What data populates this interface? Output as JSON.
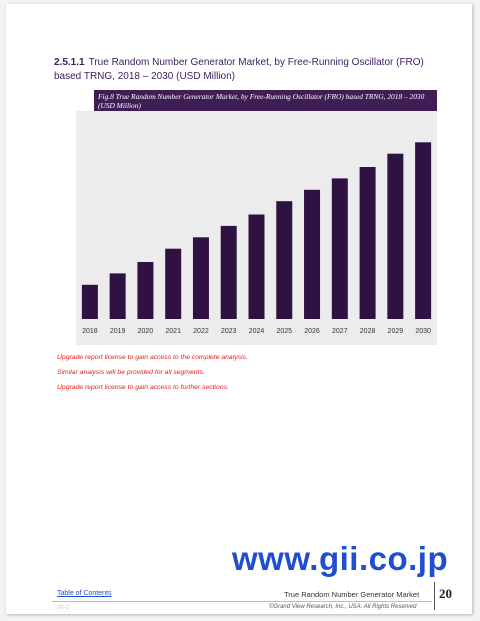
{
  "section": {
    "number": "2.5.1.1",
    "title": "True Random Number Generator Market, by Free-Running Oscillator (FRO) based TRNG, 2018 – 2030 (USD Million)"
  },
  "figure": {
    "caption": "Fig.8  True Random Number Generator Market, by Free-Running Oscillator (FRO) based TRNG, 2018 – 2030 (USD Million)"
  },
  "chart_data": {
    "type": "bar",
    "categories": [
      "2018",
      "2019",
      "2020",
      "2021",
      "2022",
      "2023",
      "2024",
      "2025",
      "2026",
      "2027",
      "2028",
      "2029",
      "2030"
    ],
    "values": [
      18,
      24,
      30,
      37,
      43,
      49,
      55,
      62,
      68,
      74,
      80,
      87,
      93
    ],
    "ylim": [
      0,
      100
    ],
    "grid": false,
    "bar_color": "#2e1241",
    "plot_background": "#ececec"
  },
  "notes": [
    "Upgrade report license to gain access to the complete analysis.",
    "Similar analysis will be provided for all segments.",
    "Upgrade report license to gain access to further sections."
  ],
  "watermark": "www.gii.co.jp",
  "footer": {
    "toc_label": "Table of Contents",
    "report_title": "True Random Number Generator Market",
    "page_number": "20",
    "page_code": "00-2",
    "copyright": "©Grand View Research, Inc., USA. All Rights Reserved"
  }
}
